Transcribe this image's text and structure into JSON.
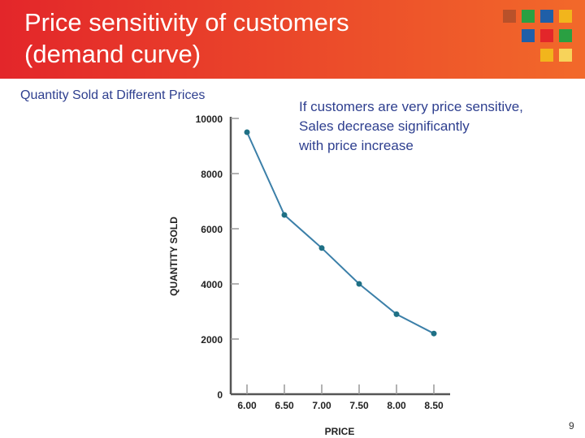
{
  "slide": {
    "title_lines": [
      "Price sensitivity of customers",
      "(demand curve)"
    ],
    "subtitle": "Quantity Sold at Different Prices",
    "note_lines": [
      "If customers are very price sensitive,",
      "Sales decrease significantly",
      "with price increase"
    ],
    "page_number": "9"
  },
  "colors": {
    "header_start": "#e3262a",
    "header_end": "#f2692a",
    "text_blue": "#2e3f8f",
    "line": "#3b7fa8",
    "marker": "#1f7085",
    "axis": "#555555",
    "logo_squares": [
      "#b8512a",
      "#2aa042",
      "#1f5fa8",
      "#f2b51c",
      "#1f5fa8",
      "#e3262a",
      "#2aa042",
      "#f2b51c",
      "#f7d35a"
    ]
  },
  "chart_data": {
    "type": "line",
    "xlabel": "PRICE",
    "ylabel": "QUANTITY SOLD",
    "categories": [
      "6.00",
      "6.50",
      "7.00",
      "7.50",
      "8.00",
      "8.50"
    ],
    "x": [
      6.0,
      6.5,
      7.0,
      7.5,
      8.0,
      8.5
    ],
    "y": [
      9500,
      6500,
      5300,
      4000,
      2900,
      2200
    ],
    "yticks": [
      "0",
      "2000",
      "4000",
      "6000",
      "8000",
      "10000"
    ],
    "ylim": [
      0,
      10000
    ],
    "grid": false,
    "legend": "none"
  }
}
